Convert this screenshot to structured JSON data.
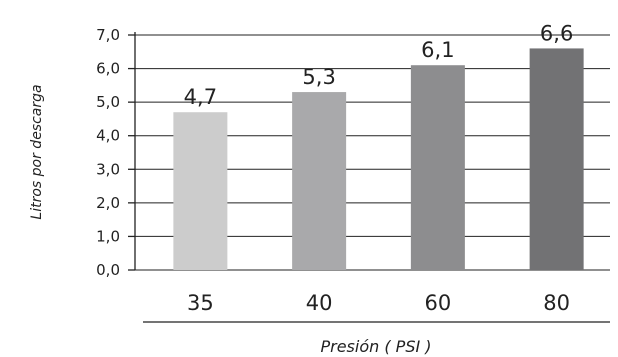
{
  "chart_data": {
    "type": "bar",
    "categories": [
      "35",
      "40",
      "60",
      "80"
    ],
    "values": [
      4.7,
      5.3,
      6.1,
      6.6
    ],
    "value_labels": [
      "4,7",
      "5,3",
      "6,1",
      "6,6"
    ],
    "yticks": [
      "0,0",
      "1,0",
      "2,0",
      "3,0",
      "4,0",
      "5,0",
      "6,0",
      "7,0"
    ],
    "ylim": [
      0,
      7
    ],
    "xlabel": "Presión ( PSI )",
    "ylabel": "Litros por descarga",
    "grid": true,
    "bar_colors": [
      "#cccccc",
      "#a9a9ab",
      "#8d8d8f",
      "#727274"
    ]
  }
}
